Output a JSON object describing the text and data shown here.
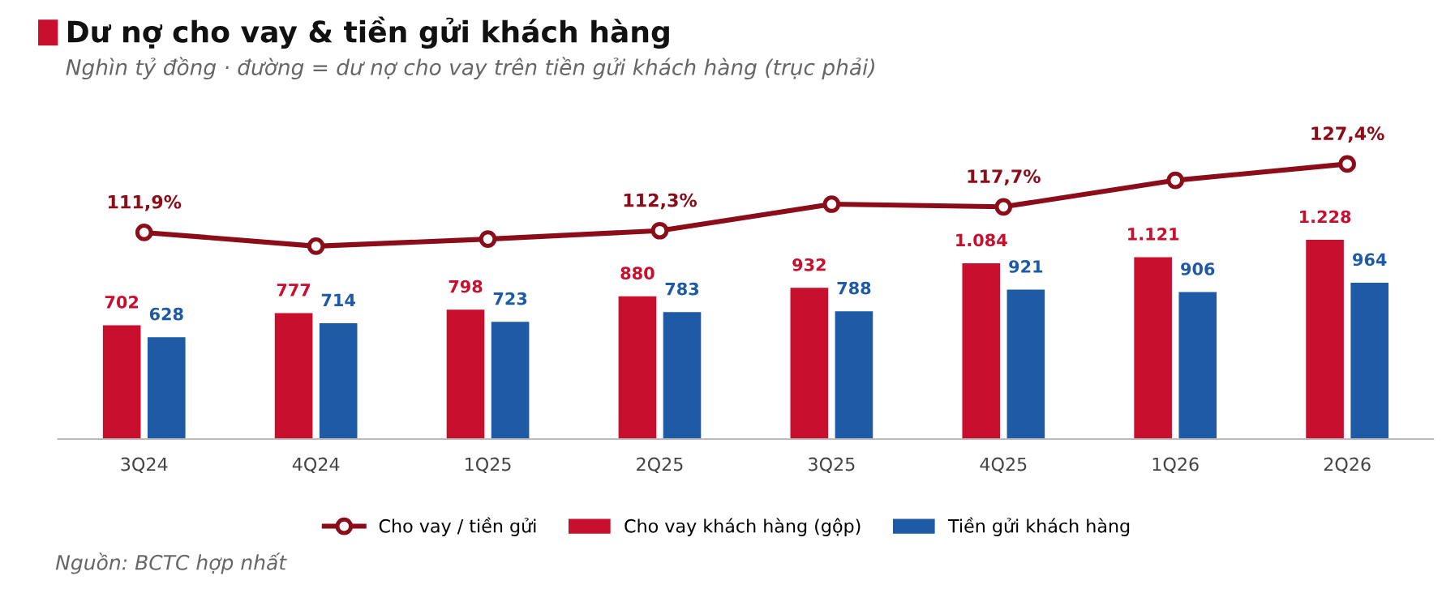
{
  "chart_data": [
    {
      "type": "line",
      "title": "Dư nợ cho vay & tiền gửi khách hàng",
      "subtitle": "Nghìn tỷ đồng · đường = dư nợ cho vay trên tiền gửi khách hàng (trục phải)",
      "categories": [
        null,
        null,
        null,
        null,
        null,
        null,
        null,
        null
      ],
      "tick_labels": false,
      "series": [
        {
          "name": "Cho vay / tiền gửi",
          "color": "#8b0d1a",
          "marker": "circle",
          "values": [
            111.9,
            108.8,
            110.4,
            112.3,
            118.3,
            117.7,
            123.7,
            127.4
          ],
          "value_labels": [
            "111,9%",
            null,
            null,
            "112,3%",
            null,
            "117,7%",
            null,
            "127,4%"
          ]
        }
      ],
      "grid": false
    },
    {
      "type": "bar",
      "categories": [
        "3Q24",
        "4Q24",
        "1Q25",
        "2Q25",
        "3Q25",
        "4Q25",
        "1Q26",
        "2Q26"
      ],
      "series": [
        {
          "name": "Cho vay khách hàng (gộp)",
          "color": "#c8102e",
          "values": [
            702,
            777,
            798,
            880,
            932,
            1084,
            1121,
            1228
          ],
          "value_labels": [
            "702",
            "777",
            "798",
            "880",
            "932",
            "1.084",
            "1.121",
            "1.228"
          ]
        },
        {
          "name": "Tiền gửi khách hàng",
          "color": "#1f5aa6",
          "values": [
            628,
            714,
            723,
            783,
            788,
            921,
            906,
            964
          ],
          "value_labels": [
            "628",
            "714",
            "723",
            "783",
            "788",
            "921",
            "906",
            "964"
          ]
        }
      ],
      "legend": "bottom",
      "grid": false,
      "annotations": [
        "Nguồn: BCTC hợp nhất"
      ]
    }
  ]
}
